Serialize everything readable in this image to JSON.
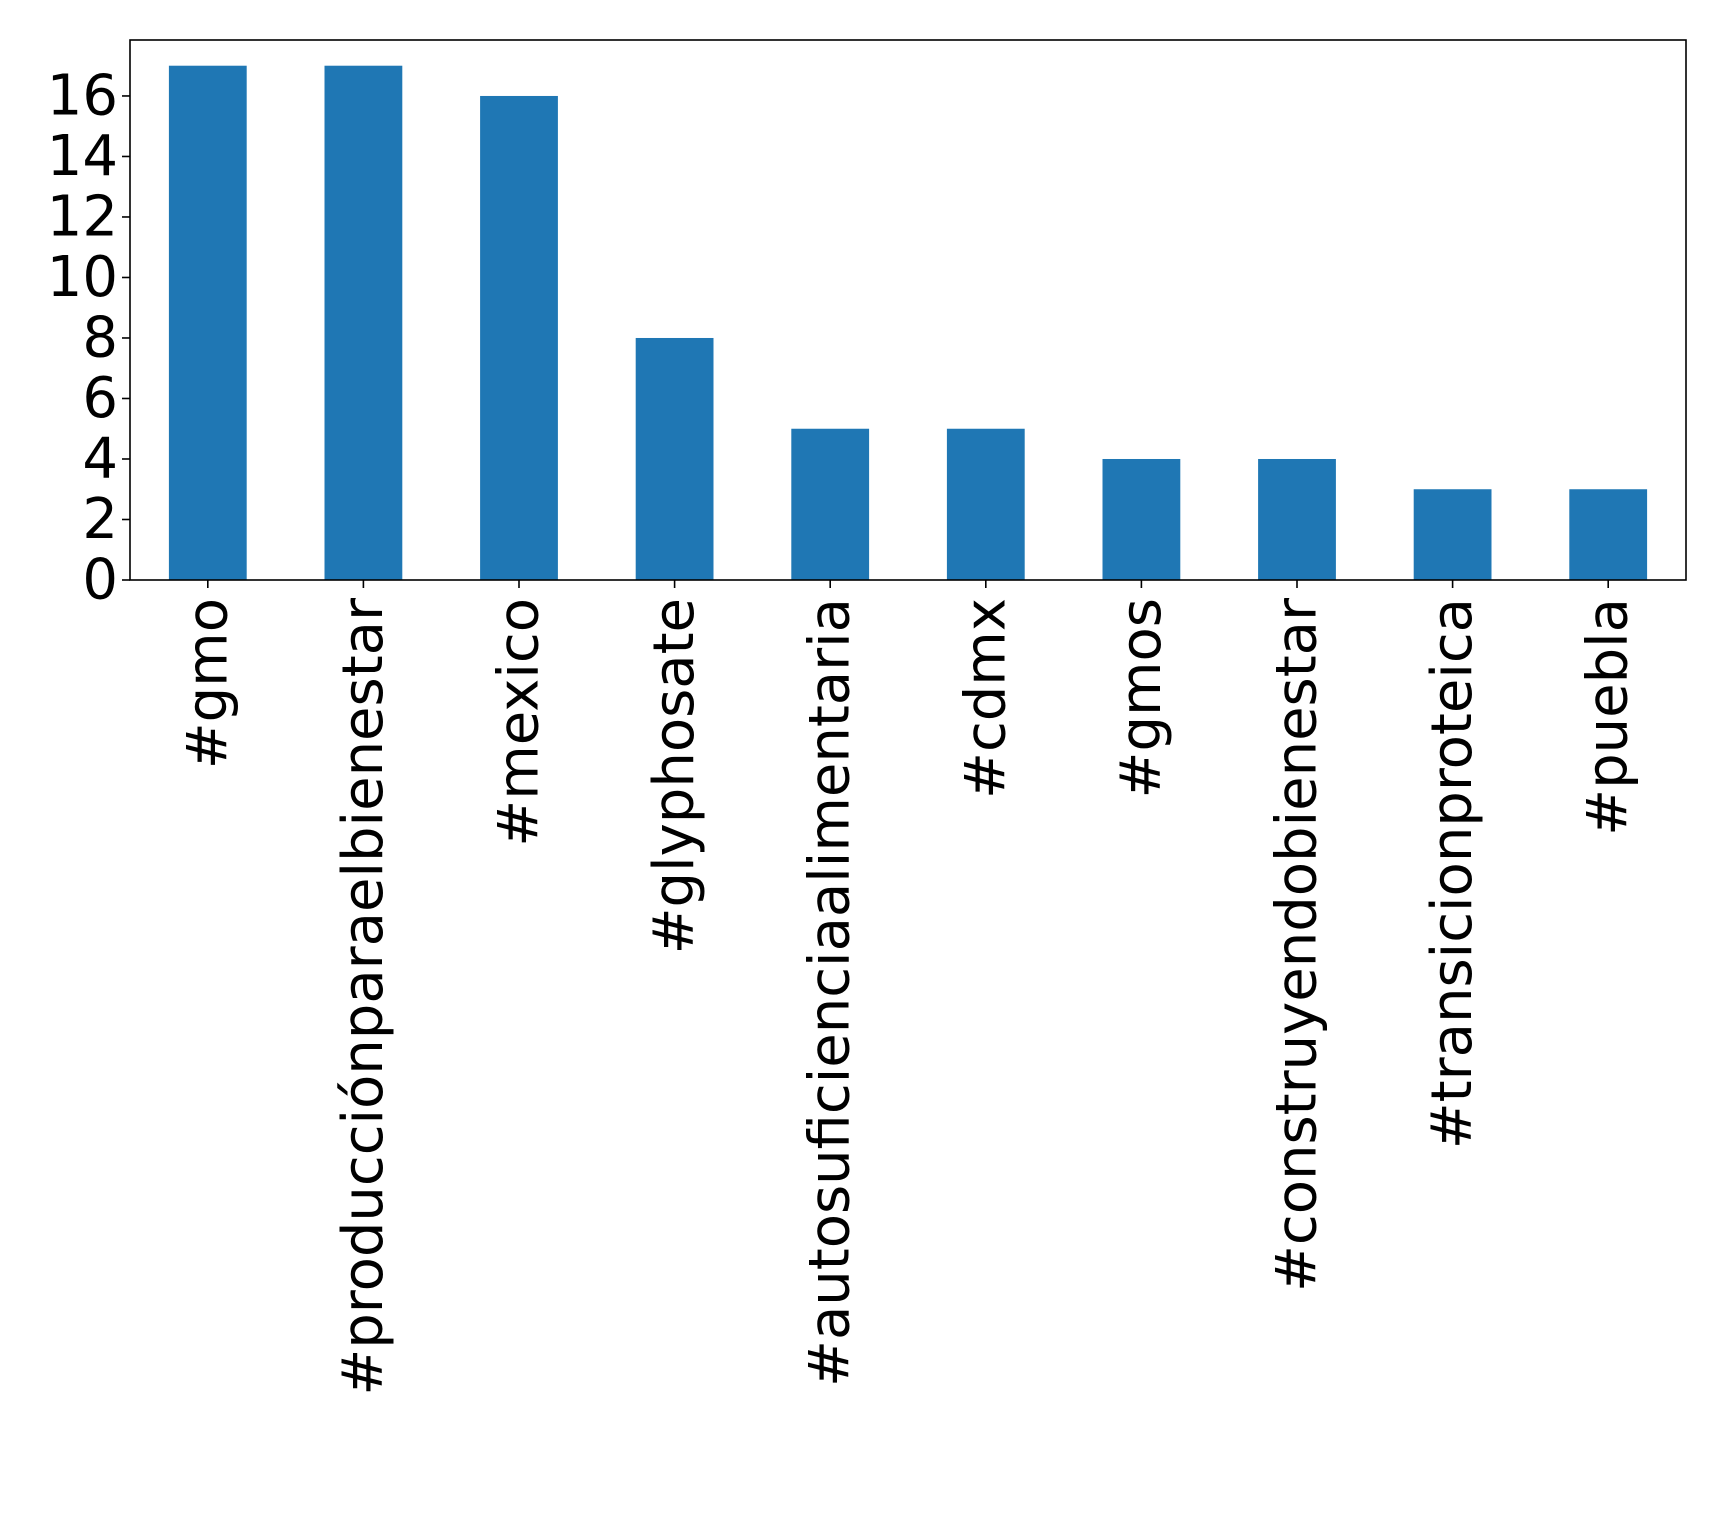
{
  "chart_data": {
    "type": "bar",
    "title": "",
    "xlabel": "",
    "ylabel": "",
    "categories": [
      "#gmo",
      "#producciónparaelbienestar",
      "#mexico",
      "#glyphosate",
      "#autosuficienciaalimentaria",
      "#cdmx",
      "#gmos",
      "#construyendobienestar",
      "#transicionproteica",
      "#puebla"
    ],
    "values": [
      17,
      17,
      16,
      8,
      5,
      5,
      4,
      4,
      3,
      3
    ],
    "ylim": [
      0,
      17.85
    ],
    "yticks": [
      0,
      2,
      4,
      6,
      8,
      10,
      12,
      14,
      16
    ],
    "grid": false,
    "legend": "none",
    "colors": {
      "bar": "#1f77b4",
      "axis": "#000000"
    }
  }
}
